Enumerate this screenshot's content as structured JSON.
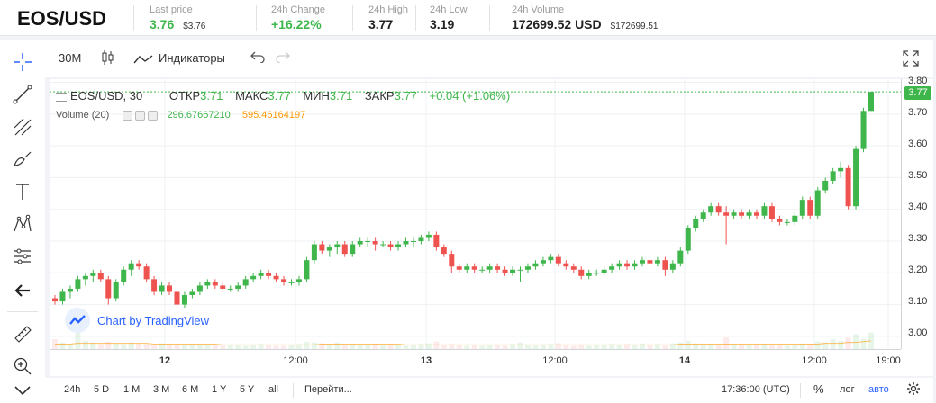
{
  "ticker": {
    "pair": "EOS/USD",
    "last_price_label": "Last price",
    "last_price": "3.76",
    "last_price_sub": "$3.76",
    "change_label": "24h Change",
    "change": "+16.22%",
    "high_label": "24h High",
    "high": "3.77",
    "low_label": "24h Low",
    "low": "3.19",
    "volume_label": "24h Volume",
    "volume": "172699.52 USD",
    "volume_sub": "$172699.51"
  },
  "toolbar": {
    "interval": "30M",
    "indicators_label": "Индикаторы"
  },
  "legend": {
    "symbol": "EOS/USD, 30",
    "open_label": "ОТКР",
    "open": "3.71",
    "high_label": "МАКС",
    "high": "3.77",
    "low_label": "МИН",
    "low": "3.71",
    "close_label": "ЗАКР",
    "close": "3.77",
    "change": "+0.04 (+1.06%)",
    "volume_label": "Volume (20)",
    "volume_value": "296.67667210",
    "volume_ma": "595.46164197"
  },
  "watermark": "Chart by TradingView",
  "price_axis": {
    "ticks": [
      "3.80",
      "3.70",
      "3.60",
      "3.50",
      "3.40",
      "3.30",
      "3.20",
      "3.10",
      "3.00"
    ],
    "last_price_tag": "3.77"
  },
  "time_axis": {
    "ticks": [
      {
        "label": "12",
        "bold": true
      },
      {
        "label": "12:00",
        "bold": false
      },
      {
        "label": "13",
        "bold": true
      },
      {
        "label": "12:00",
        "bold": false
      },
      {
        "label": "14",
        "bold": true
      },
      {
        "label": "12:00",
        "bold": false
      },
      {
        "label": "19:00",
        "bold": false
      }
    ]
  },
  "bottom_bar": {
    "ranges": [
      "24h",
      "5 D",
      "1 M",
      "3 M",
      "6 M",
      "1 Y",
      "5 Y",
      "all"
    ],
    "goto": "Перейти...",
    "clock": "17:36:00 (UTC)",
    "percent": "%",
    "log": "лог",
    "auto": "авто"
  },
  "colors": {
    "up": "#3fb64b",
    "down": "#ef5350",
    "accent": "#2962ff",
    "volume_ma": "#ff9800"
  },
  "chart_data": {
    "type": "candlestick",
    "symbol": "EOS/USD",
    "ylim": [
      2.96,
      3.81
    ],
    "last": 3.77,
    "candles": [
      [
        3.12,
        3.13,
        3.1,
        3.11
      ],
      [
        3.11,
        3.15,
        3.1,
        3.14
      ],
      [
        3.14,
        3.16,
        3.12,
        3.15
      ],
      [
        3.15,
        3.19,
        3.14,
        3.18
      ],
      [
        3.18,
        3.2,
        3.16,
        3.19
      ],
      [
        3.19,
        3.21,
        3.17,
        3.2
      ],
      [
        3.2,
        3.21,
        3.17,
        3.18
      ],
      [
        3.18,
        3.19,
        3.1,
        3.12
      ],
      [
        3.12,
        3.18,
        3.11,
        3.17
      ],
      [
        3.17,
        3.22,
        3.16,
        3.21
      ],
      [
        3.21,
        3.24,
        3.19,
        3.23
      ],
      [
        3.23,
        3.24,
        3.21,
        3.22
      ],
      [
        3.22,
        3.23,
        3.17,
        3.18
      ],
      [
        3.18,
        3.19,
        3.13,
        3.14
      ],
      [
        3.14,
        3.17,
        3.13,
        3.16
      ],
      [
        3.16,
        3.17,
        3.13,
        3.14
      ],
      [
        3.14,
        3.15,
        3.09,
        3.1
      ],
      [
        3.1,
        3.14,
        3.09,
        3.13
      ],
      [
        3.13,
        3.15,
        3.12,
        3.14
      ],
      [
        3.14,
        3.17,
        3.13,
        3.16
      ],
      [
        3.16,
        3.18,
        3.15,
        3.17
      ],
      [
        3.17,
        3.18,
        3.15,
        3.16
      ],
      [
        3.16,
        3.17,
        3.14,
        3.15
      ],
      [
        3.15,
        3.16,
        3.14,
        3.15
      ],
      [
        3.15,
        3.17,
        3.14,
        3.16
      ],
      [
        3.16,
        3.19,
        3.15,
        3.18
      ],
      [
        3.18,
        3.2,
        3.17,
        3.19
      ],
      [
        3.19,
        3.21,
        3.18,
        3.2
      ],
      [
        3.2,
        3.21,
        3.18,
        3.19
      ],
      [
        3.19,
        3.2,
        3.17,
        3.18
      ],
      [
        3.18,
        3.19,
        3.16,
        3.17
      ],
      [
        3.17,
        3.18,
        3.16,
        3.17
      ],
      [
        3.17,
        3.19,
        3.16,
        3.18
      ],
      [
        3.18,
        3.25,
        3.17,
        3.24
      ],
      [
        3.24,
        3.3,
        3.23,
        3.29
      ],
      [
        3.29,
        3.3,
        3.26,
        3.27
      ],
      [
        3.27,
        3.29,
        3.25,
        3.28
      ],
      [
        3.28,
        3.3,
        3.26,
        3.29
      ],
      [
        3.29,
        3.3,
        3.25,
        3.26
      ],
      [
        3.26,
        3.3,
        3.25,
        3.29
      ],
      [
        3.29,
        3.31,
        3.28,
        3.3
      ],
      [
        3.3,
        3.31,
        3.28,
        3.3
      ],
      [
        3.3,
        3.31,
        3.27,
        3.29
      ],
      [
        3.29,
        3.3,
        3.28,
        3.29
      ],
      [
        3.29,
        3.3,
        3.27,
        3.28
      ],
      [
        3.28,
        3.3,
        3.27,
        3.29
      ],
      [
        3.29,
        3.31,
        3.28,
        3.3
      ],
      [
        3.3,
        3.31,
        3.28,
        3.3
      ],
      [
        3.3,
        3.32,
        3.29,
        3.31
      ],
      [
        3.31,
        3.33,
        3.3,
        3.32
      ],
      [
        3.32,
        3.33,
        3.27,
        3.28
      ],
      [
        3.28,
        3.29,
        3.25,
        3.26
      ],
      [
        3.26,
        3.27,
        3.2,
        3.22
      ],
      [
        3.22,
        3.23,
        3.2,
        3.21
      ],
      [
        3.21,
        3.23,
        3.2,
        3.22
      ],
      [
        3.22,
        3.23,
        3.2,
        3.21
      ],
      [
        3.21,
        3.22,
        3.2,
        3.21
      ],
      [
        3.21,
        3.23,
        3.2,
        3.22
      ],
      [
        3.22,
        3.23,
        3.2,
        3.21
      ],
      [
        3.21,
        3.22,
        3.19,
        3.2
      ],
      [
        3.2,
        3.22,
        3.19,
        3.21
      ],
      [
        3.21,
        3.22,
        3.17,
        3.21
      ],
      [
        3.21,
        3.23,
        3.2,
        3.22
      ],
      [
        3.22,
        3.24,
        3.21,
        3.23
      ],
      [
        3.23,
        3.25,
        3.22,
        3.24
      ],
      [
        3.24,
        3.26,
        3.23,
        3.25
      ],
      [
        3.25,
        3.26,
        3.22,
        3.23
      ],
      [
        3.23,
        3.24,
        3.21,
        3.22
      ],
      [
        3.22,
        3.23,
        3.2,
        3.21
      ],
      [
        3.21,
        3.22,
        3.18,
        3.19
      ],
      [
        3.19,
        3.21,
        3.18,
        3.2
      ],
      [
        3.2,
        3.21,
        3.19,
        3.2
      ],
      [
        3.2,
        3.22,
        3.19,
        3.21
      ],
      [
        3.21,
        3.23,
        3.2,
        3.22
      ],
      [
        3.22,
        3.24,
        3.21,
        3.23
      ],
      [
        3.23,
        3.24,
        3.21,
        3.22
      ],
      [
        3.22,
        3.24,
        3.21,
        3.23
      ],
      [
        3.23,
        3.25,
        3.22,
        3.24
      ],
      [
        3.24,
        3.25,
        3.22,
        3.23
      ],
      [
        3.23,
        3.25,
        3.22,
        3.24
      ],
      [
        3.24,
        3.25,
        3.19,
        3.21
      ],
      [
        3.21,
        3.24,
        3.2,
        3.23
      ],
      [
        3.23,
        3.28,
        3.22,
        3.27
      ],
      [
        3.27,
        3.35,
        3.26,
        3.34
      ],
      [
        3.34,
        3.38,
        3.33,
        3.37
      ],
      [
        3.37,
        3.4,
        3.36,
        3.39
      ],
      [
        3.39,
        3.42,
        3.38,
        3.41
      ],
      [
        3.41,
        3.42,
        3.38,
        3.39
      ],
      [
        3.39,
        3.41,
        3.29,
        3.38
      ],
      [
        3.38,
        3.4,
        3.37,
        3.39
      ],
      [
        3.39,
        3.4,
        3.37,
        3.38
      ],
      [
        3.38,
        3.4,
        3.37,
        3.39
      ],
      [
        3.39,
        3.4,
        3.37,
        3.38
      ],
      [
        3.38,
        3.42,
        3.37,
        3.41
      ],
      [
        3.41,
        3.42,
        3.36,
        3.37
      ],
      [
        3.37,
        3.38,
        3.35,
        3.36
      ],
      [
        3.36,
        3.37,
        3.35,
        3.36
      ],
      [
        3.36,
        3.39,
        3.35,
        3.38
      ],
      [
        3.38,
        3.44,
        3.37,
        3.43
      ],
      [
        3.43,
        3.44,
        3.37,
        3.38
      ],
      [
        3.38,
        3.47,
        3.37,
        3.46
      ],
      [
        3.46,
        3.5,
        3.45,
        3.49
      ],
      [
        3.49,
        3.53,
        3.48,
        3.52
      ],
      [
        3.52,
        3.55,
        3.5,
        3.53
      ],
      [
        3.53,
        3.54,
        3.4,
        3.41
      ],
      [
        3.41,
        3.6,
        3.4,
        3.59
      ],
      [
        3.59,
        3.72,
        3.58,
        3.71
      ],
      [
        3.71,
        3.77,
        3.71,
        3.77
      ]
    ],
    "volume": [
      12,
      8,
      6,
      20,
      10,
      8,
      6,
      9,
      7,
      6,
      8,
      7,
      6,
      5,
      7,
      6,
      5,
      5,
      6,
      5,
      5,
      4,
      4,
      5,
      5,
      4,
      5,
      6,
      5,
      4,
      4,
      5,
      6,
      9,
      8,
      7,
      6,
      8,
      5,
      6,
      5,
      5,
      6,
      4,
      5,
      5,
      4,
      5,
      6,
      7,
      9,
      5,
      6,
      5,
      4,
      5,
      4,
      5,
      5,
      4,
      6,
      8,
      5,
      4,
      5,
      6,
      7,
      5,
      4,
      5,
      4,
      5,
      5,
      6,
      5,
      6,
      5,
      7,
      5,
      6,
      5,
      7,
      8,
      10,
      7,
      6,
      6,
      5,
      14,
      6,
      5,
      5,
      5,
      6,
      5,
      5,
      4,
      5,
      7,
      6,
      9,
      8,
      12,
      10,
      14,
      18,
      12,
      20
    ],
    "volume_ma": [
      6,
      6,
      6,
      7,
      7,
      7,
      7,
      7,
      7,
      7,
      7,
      7,
      7,
      6,
      6,
      6,
      6,
      6,
      6,
      6,
      6,
      6,
      5,
      5,
      5,
      5,
      5,
      5,
      5,
      5,
      5,
      5,
      5,
      5,
      5,
      6,
      6,
      6,
      6,
      6,
      6,
      6,
      6,
      6,
      6,
      6,
      5,
      5,
      5,
      5,
      5,
      5,
      5,
      5,
      5,
      5,
      5,
      5,
      5,
      5,
      5,
      5,
      5,
      5,
      5,
      5,
      5,
      5,
      5,
      5,
      5,
      5,
      5,
      5,
      5,
      5,
      5,
      5,
      5,
      5,
      5,
      5,
      6,
      6,
      6,
      6,
      6,
      6,
      6,
      6,
      6,
      6,
      6,
      6,
      6,
      6,
      6,
      6,
      6,
      6,
      6,
      7,
      7,
      7,
      8,
      8,
      9,
      10
    ]
  }
}
